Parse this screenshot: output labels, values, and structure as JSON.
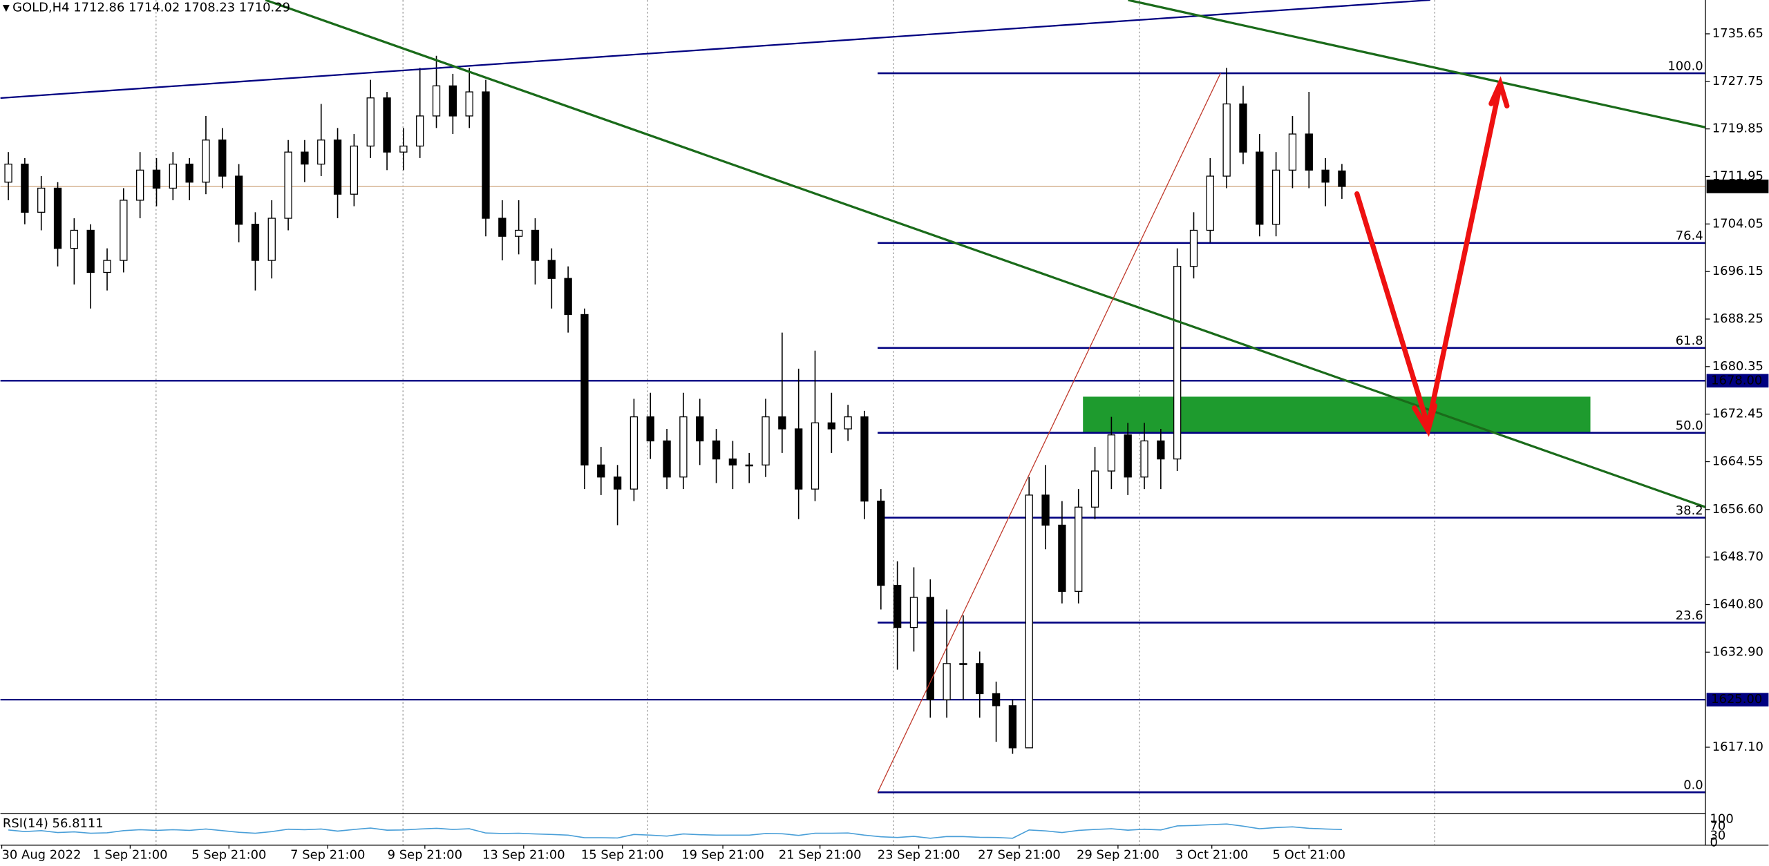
{
  "chart_data": {
    "type": "candlestick",
    "symbol": "GOLD,H4",
    "up_color": "#ffffff",
    "down_color": "#000000",
    "level_color": "#000080",
    "candles": [
      [
        1711,
        1716,
        1708,
        1714
      ],
      [
        1714,
        1715,
        1704,
        1706
      ],
      [
        1706,
        1712,
        1703,
        1710
      ],
      [
        1710,
        1711,
        1697,
        1700
      ],
      [
        1700,
        1705,
        1694,
        1703
      ],
      [
        1703,
        1704,
        1690,
        1696
      ],
      [
        1696,
        1700,
        1693,
        1698
      ],
      [
        1698,
        1710,
        1696,
        1708
      ],
      [
        1708,
        1716,
        1705,
        1713
      ],
      [
        1713,
        1715,
        1707,
        1710
      ],
      [
        1710,
        1716,
        1708,
        1714
      ],
      [
        1714,
        1715,
        1708,
        1711
      ],
      [
        1711,
        1722,
        1709,
        1718
      ],
      [
        1718,
        1720,
        1710,
        1712
      ],
      [
        1712,
        1714,
        1701,
        1704
      ],
      [
        1704,
        1706,
        1693,
        1698
      ],
      [
        1698,
        1708,
        1695,
        1705
      ],
      [
        1705,
        1718,
        1703,
        1716
      ],
      [
        1716,
        1718,
        1711,
        1714
      ],
      [
        1714,
        1724,
        1712,
        1718
      ],
      [
        1718,
        1720,
        1705,
        1709
      ],
      [
        1709,
        1719,
        1707,
        1717
      ],
      [
        1717,
        1728,
        1715,
        1725
      ],
      [
        1725,
        1726,
        1713,
        1716
      ],
      [
        1716,
        1720,
        1713,
        1717
      ],
      [
        1717,
        1730,
        1715,
        1722
      ],
      [
        1722,
        1732,
        1720,
        1727
      ],
      [
        1727,
        1729,
        1719,
        1722
      ],
      [
        1722,
        1730,
        1720,
        1726
      ],
      [
        1726,
        1728,
        1702,
        1705
      ],
      [
        1705,
        1708,
        1698,
        1702
      ],
      [
        1702,
        1708,
        1699,
        1703
      ],
      [
        1703,
        1705,
        1694,
        1698
      ],
      [
        1698,
        1700,
        1690,
        1695
      ],
      [
        1695,
        1697,
        1686,
        1689
      ],
      [
        1689,
        1690,
        1660,
        1664
      ],
      [
        1664,
        1667,
        1659,
        1662
      ],
      [
        1662,
        1664,
        1654,
        1660
      ],
      [
        1660,
        1675,
        1658,
        1672
      ],
      [
        1672,
        1676,
        1665,
        1668
      ],
      [
        1668,
        1670,
        1660,
        1662
      ],
      [
        1662,
        1676,
        1660,
        1672
      ],
      [
        1672,
        1675,
        1664,
        1668
      ],
      [
        1668,
        1670,
        1661,
        1665
      ],
      [
        1665,
        1668,
        1660,
        1664
      ],
      [
        1664,
        1666,
        1661,
        1664
      ],
      [
        1664,
        1675,
        1662,
        1672
      ],
      [
        1672,
        1686,
        1666,
        1670
      ],
      [
        1670,
        1680,
        1655,
        1660
      ],
      [
        1660,
        1683,
        1658,
        1671
      ],
      [
        1671,
        1676,
        1666,
        1670
      ],
      [
        1670,
        1674,
        1668,
        1672
      ],
      [
        1672,
        1673,
        1655,
        1658
      ],
      [
        1658,
        1660,
        1640,
        1644
      ],
      [
        1644,
        1648,
        1630,
        1637
      ],
      [
        1637,
        1647,
        1633,
        1642
      ],
      [
        1642,
        1645,
        1622,
        1625
      ],
      [
        1625,
        1640,
        1622,
        1631
      ],
      [
        1631,
        1639,
        1625,
        1631
      ],
      [
        1631,
        1633,
        1622,
        1626
      ],
      [
        1626,
        1628,
        1618,
        1624
      ],
      [
        1624,
        1625,
        1616,
        1617
      ],
      [
        1617,
        1662,
        1617,
        1659
      ],
      [
        1659,
        1664,
        1650,
        1654
      ],
      [
        1654,
        1658,
        1641,
        1643
      ],
      [
        1643,
        1660,
        1641,
        1657
      ],
      [
        1657,
        1667,
        1655,
        1663
      ],
      [
        1663,
        1672,
        1660,
        1669
      ],
      [
        1669,
        1671,
        1659,
        1662
      ],
      [
        1662,
        1671,
        1660,
        1668
      ],
      [
        1668,
        1670,
        1660,
        1665
      ],
      [
        1665,
        1700,
        1663,
        1697
      ],
      [
        1697,
        1706,
        1695,
        1703
      ],
      [
        1703,
        1715,
        1701,
        1712
      ],
      [
        1712,
        1730,
        1710,
        1724
      ],
      [
        1724,
        1727,
        1714,
        1716
      ],
      [
        1716,
        1719,
        1702,
        1704
      ],
      [
        1704,
        1716,
        1702,
        1713
      ],
      [
        1713,
        1722,
        1710,
        1719
      ],
      [
        1719,
        1726,
        1710,
        1713
      ],
      [
        1713,
        1715,
        1707,
        1711
      ],
      [
        1712.86,
        1714.02,
        1708.23,
        1710.29
      ]
    ],
    "xlim": [
      -0.48,
      103.08
    ],
    "ylim": [
      1606.06,
      1741.27
    ],
    "yticks": [
      1735.65,
      1727.75,
      1719.85,
      1711.95,
      1704.05,
      1696.15,
      1688.25,
      1680.35,
      1672.45,
      1664.55,
      {
        "value": 1656.6,
        "label": "1656.60"
      },
      {
        "value": 1648.7,
        "label": "1648.70"
      },
      {
        "value": 1640.8,
        "label": "1640.80"
      },
      {
        "value": 1632.9,
        "label": "1632.90"
      },
      {
        "value": 1617.1,
        "label": "1617.10"
      }
    ],
    "xticks": [
      {
        "value": -0.4,
        "label": "30 Aug 2022"
      },
      {
        "value": 7.4,
        "label": "1 Sep 21:00"
      },
      {
        "value": 13.4,
        "label": "5 Sep 21:00"
      },
      {
        "value": 19.4,
        "label": "7 Sep 21:00"
      },
      {
        "value": 25.3,
        "label": "9 Sep 21:00"
      },
      {
        "value": 31.3,
        "label": "13 Sep 21:00"
      },
      {
        "value": 37.3,
        "label": "15 Sep 21:00"
      },
      {
        "value": 43.4,
        "label": "19 Sep 21:00"
      },
      {
        "value": 49.3,
        "label": "21 Sep 21:00"
      },
      {
        "value": 55.3,
        "label": "23 Sep 21:00"
      },
      {
        "value": 61.4,
        "label": "27 Sep 21:00"
      },
      {
        "value": 67.4,
        "label": "29 Sep 21:00"
      },
      {
        "value": 73.1,
        "label": "3 Oct 21:00"
      },
      {
        "value": 79.0,
        "label": "5 Oct 21:00"
      }
    ],
    "price_lines": [
      {
        "value": 1678,
        "label": "1678.00"
      },
      {
        "value": 1625,
        "label": "1625.00"
      }
    ],
    "fib": {
      "high": 1729.1,
      "low": 1609.6,
      "start": 52.8,
      "levels": [
        {
          "value": 100,
          "label": "100.0"
        },
        76.4,
        61.8,
        {
          "value": 50,
          "label": "50.0"
        },
        38.2,
        23.6,
        {
          "value": 0,
          "label": "0.0"
        }
      ]
    },
    "rsi": {
      "name": "RSI(14)",
      "ylim": [
        0,
        100
      ],
      "yticks": [
        0,
        30,
        70,
        100
      ],
      "values": [
        55,
        48,
        52,
        44,
        47,
        41,
        43,
        52,
        56,
        53,
        56,
        53,
        59,
        52,
        45,
        41,
        48,
        58,
        56,
        59,
        50,
        57,
        63,
        54,
        55,
        59,
        62,
        57,
        60,
        42,
        40,
        41,
        38,
        36,
        33,
        22,
        22,
        21,
        36,
        33,
        29,
        38,
        35,
        33,
        33,
        33,
        40,
        39,
        32,
        41,
        41,
        42,
        33,
        26,
        23,
        28,
        20,
        27,
        27,
        24,
        23,
        20,
        55,
        51,
        44,
        53,
        57,
        60,
        54,
        58,
        55,
        72,
        74,
        77,
        80,
        71,
        60,
        65,
        68,
        62,
        59,
        56.8111
      ]
    }
  }
}
